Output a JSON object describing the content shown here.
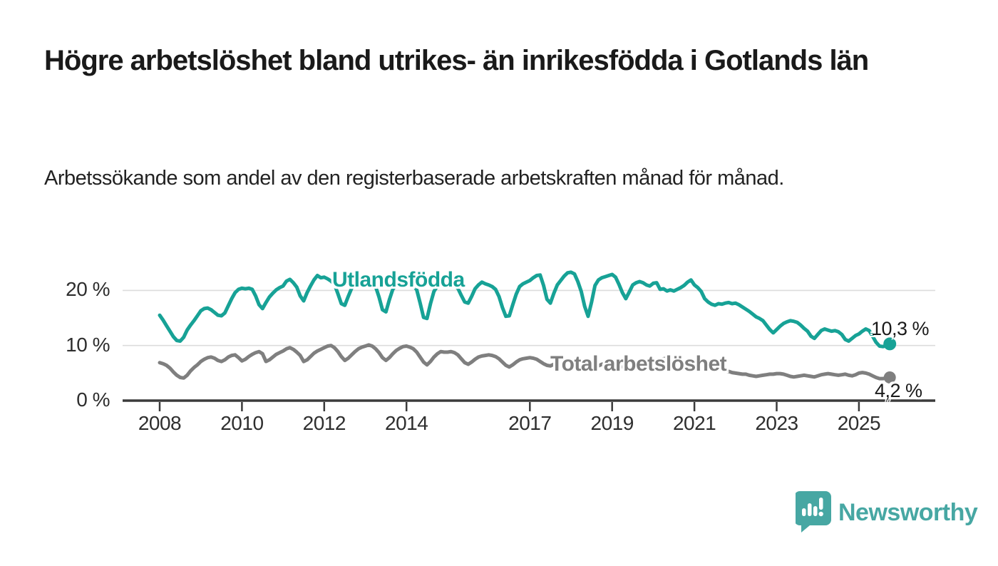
{
  "title": "Högre arbetslöshet bland utrikes- än inrikesfödda i Gotlands län",
  "subtitle": "Arbetssökande som andel av den registerbaserade arbetskraften månad för månad.",
  "branding": {
    "logo_text": "Newsworthy",
    "logo_icon": "bar-chart-speech-bubble-icon"
  },
  "colors": {
    "series_foreign_born": "#17a296",
    "series_total": "#7f7f7f",
    "grid": "#dcdcdc",
    "axis": "#3b3b3b",
    "text": "#1a1a1a",
    "logo": "#47a7a3"
  },
  "chart_data": {
    "type": "line",
    "title": "Högre arbetslöshet bland utrikes- än inrikesfödda i Gotlands län",
    "subtitle": "Arbetssökande som andel av den registerbaserade arbetskraften månad för månad.",
    "x_unit": "month",
    "x_range": [
      2008.0,
      2025.75
    ],
    "ylim": [
      0,
      25
    ],
    "grid": "horizontal-only",
    "legend_position": "inline-labels",
    "x_tick_labels": [
      "2008",
      "2010",
      "2012",
      "2014",
      "2017",
      "2019",
      "2021",
      "2023",
      "2025"
    ],
    "y_ticks": [
      {
        "value": 0,
        "label": "0 %"
      },
      {
        "value": 10,
        "label": "10 %"
      },
      {
        "value": 20,
        "label": "20 %"
      }
    ],
    "series": [
      {
        "name": "Utlandsfödda",
        "color": "#17a296",
        "end_label": "10,3 %",
        "last_value": 10.3,
        "start_year": 2008,
        "monthly_values": [
          15.5,
          14.6,
          13.6,
          12.6,
          11.6,
          10.9,
          10.8,
          11.5,
          12.8,
          13.7,
          14.5,
          15.4,
          16.3,
          16.7,
          16.8,
          16.5,
          16.0,
          15.5,
          15.4,
          15.9,
          17.2,
          18.5,
          19.6,
          20.2,
          20.4,
          20.3,
          20.4,
          20.2,
          19.0,
          17.4,
          16.7,
          17.8,
          18.8,
          19.5,
          20.1,
          20.5,
          20.8,
          21.7,
          22.0,
          21.4,
          20.6,
          19.0,
          18.1,
          19.6,
          20.8,
          21.9,
          22.7,
          22.3,
          22.4,
          22.1,
          21.7,
          21.1,
          19.4,
          17.6,
          17.3,
          18.9,
          20.4,
          21.2,
          21.8,
          21.6,
          22.0,
          21.8,
          21.4,
          20.7,
          18.8,
          16.5,
          16.1,
          18.3,
          20.2,
          21.0,
          21.6,
          21.4,
          21.7,
          21.5,
          21.0,
          20.1,
          17.7,
          15.1,
          14.9,
          17.6,
          19.8,
          20.8,
          21.3,
          21.1,
          21.4,
          21.2,
          20.9,
          20.4,
          19.1,
          17.9,
          17.7,
          18.9,
          20.3,
          21.0,
          21.5,
          21.2,
          21.0,
          20.7,
          20.2,
          18.9,
          16.9,
          15.3,
          15.4,
          17.4,
          19.3,
          20.7,
          21.2,
          21.5,
          21.8,
          22.3,
          22.7,
          22.8,
          20.9,
          18.4,
          17.7,
          19.5,
          21.0,
          21.8,
          22.6,
          23.2,
          23.3,
          23.0,
          21.6,
          19.8,
          17.1,
          15.3,
          17.9,
          20.9,
          21.9,
          22.3,
          22.5,
          22.7,
          22.9,
          22.4,
          21.1,
          19.6,
          18.5,
          19.7,
          21.0,
          21.4,
          21.6,
          21.4,
          21.0,
          20.8,
          21.3,
          21.4,
          20.2,
          20.3,
          19.9,
          20.1,
          19.9,
          20.2,
          20.5,
          20.9,
          21.5,
          21.9,
          21.0,
          20.5,
          19.8,
          18.5,
          17.9,
          17.5,
          17.3,
          17.6,
          17.5,
          17.7,
          17.8,
          17.6,
          17.7,
          17.4,
          17.0,
          16.6,
          16.2,
          15.7,
          15.2,
          14.9,
          14.5,
          13.7,
          12.9,
          12.3,
          12.9,
          13.5,
          14.0,
          14.3,
          14.5,
          14.4,
          14.2,
          13.7,
          13.1,
          12.6,
          11.7,
          11.3,
          12.0,
          12.7,
          13.0,
          12.8,
          12.6,
          12.7,
          12.5,
          12.0,
          11.1,
          10.8,
          11.3,
          11.8,
          12.1,
          12.6,
          13.0,
          12.7,
          11.7,
          10.6,
          9.9,
          9.8,
          10.0,
          10.3
        ]
      },
      {
        "name": "Total arbetslöshet",
        "color": "#7f7f7f",
        "end_label": "4,2 %",
        "last_value": 4.2,
        "start_year": 2008,
        "monthly_values": [
          6.9,
          6.7,
          6.4,
          5.9,
          5.2,
          4.6,
          4.2,
          4.1,
          4.6,
          5.4,
          6.0,
          6.5,
          7.1,
          7.5,
          7.8,
          7.9,
          7.7,
          7.3,
          7.1,
          7.4,
          7.9,
          8.2,
          8.3,
          7.8,
          7.2,
          7.5,
          8.0,
          8.4,
          8.7,
          8.9,
          8.5,
          7.1,
          7.4,
          7.9,
          8.4,
          8.7,
          9.0,
          9.4,
          9.6,
          9.3,
          8.8,
          8.2,
          7.1,
          7.4,
          8.0,
          8.6,
          9.0,
          9.3,
          9.6,
          9.9,
          10.0,
          9.6,
          8.9,
          8.0,
          7.3,
          7.7,
          8.3,
          8.9,
          9.4,
          9.7,
          9.9,
          10.1,
          9.9,
          9.4,
          8.7,
          7.8,
          7.3,
          7.8,
          8.5,
          9.1,
          9.5,
          9.8,
          9.9,
          9.7,
          9.4,
          8.8,
          7.9,
          7.0,
          6.5,
          7.1,
          7.9,
          8.5,
          8.9,
          8.8,
          8.8,
          8.9,
          8.7,
          8.3,
          7.6,
          6.9,
          6.6,
          7.0,
          7.5,
          7.9,
          8.1,
          8.2,
          8.3,
          8.2,
          8.0,
          7.6,
          7.0,
          6.4,
          6.1,
          6.5,
          7.0,
          7.4,
          7.6,
          7.7,
          7.8,
          7.7,
          7.5,
          7.1,
          6.7,
          6.4,
          6.3,
          6.6,
          7.0,
          7.2,
          7.4,
          7.3,
          7.3,
          7.2,
          7.0,
          6.6,
          6.2,
          5.8,
          5.7,
          6.0,
          6.3,
          6.6,
          6.7,
          6.8,
          6.8,
          6.7,
          6.5,
          6.2,
          5.9,
          5.8,
          5.9,
          6.1,
          6.3,
          6.5,
          6.6,
          6.7,
          6.8,
          7.0,
          7.3,
          7.6,
          7.7,
          7.7,
          7.6,
          7.5,
          7.4,
          7.3,
          7.2,
          7.1,
          7.1,
          6.9,
          6.6,
          6.3,
          6.0,
          5.8,
          5.7,
          5.6,
          5.5,
          5.4,
          5.3,
          5.1,
          5.0,
          4.9,
          4.8,
          4.8,
          4.6,
          4.5,
          4.4,
          4.5,
          4.6,
          4.7,
          4.8,
          4.8,
          4.9,
          4.9,
          4.8,
          4.6,
          4.4,
          4.3,
          4.4,
          4.5,
          4.6,
          4.5,
          4.4,
          4.3,
          4.5,
          4.7,
          4.8,
          4.9,
          4.8,
          4.7,
          4.6,
          4.7,
          4.8,
          4.6,
          4.5,
          4.7,
          5.0,
          5.1,
          5.0,
          4.8,
          4.5,
          4.2,
          4.0,
          4.0,
          4.1,
          4.2
        ]
      }
    ]
  }
}
